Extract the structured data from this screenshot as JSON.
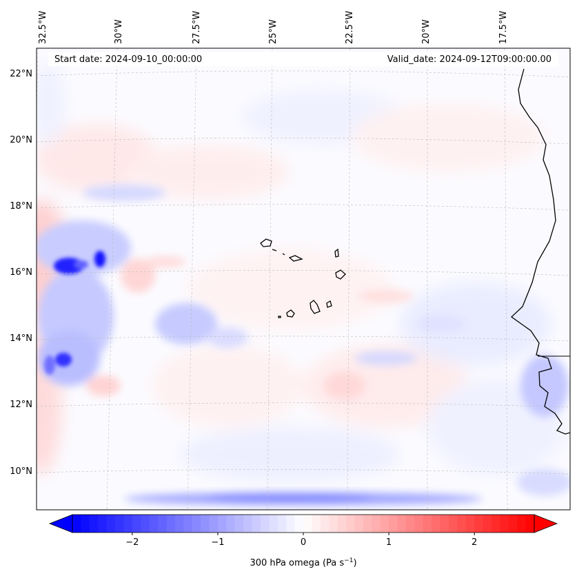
{
  "map": {
    "start_label": "Start date: 2024-09-10_00:00:00",
    "valid_label": "Valid_date: 2024-09-12T09:00:00.00",
    "lon_labels": [
      "32.5°W",
      "30°W",
      "27.5°W",
      "25°W",
      "22.5°W",
      "20°W",
      "17.5°W"
    ],
    "lat_labels": [
      "22°N",
      "20°N",
      "18°N",
      "16°N",
      "14°N",
      "12°N",
      "10°N"
    ],
    "gridlines": true
  },
  "colorbar": {
    "label": "300 hPa omega (Pa s",
    "label_sup": "−1",
    "label_tail": ")",
    "ticks": [
      "−2",
      "−1",
      "0",
      "1",
      "2"
    ],
    "range": [
      -2.7,
      2.7
    ],
    "cmap": "bwr",
    "low_color": "#0000ff",
    "mid_color": "#ffffff",
    "high_color": "#ff0000"
  }
}
